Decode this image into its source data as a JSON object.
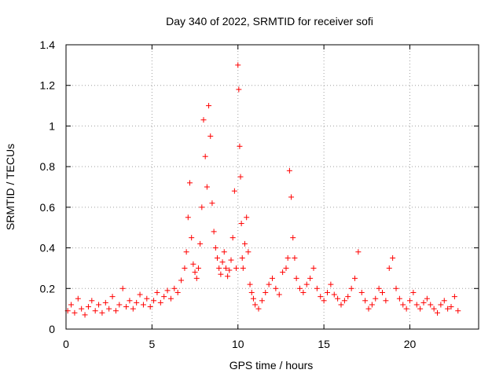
{
  "chart_data": {
    "type": "scatter",
    "title": "Day 340 of 2022, SRMTID for receiver sofi",
    "xlabel": "GPS time / hours",
    "ylabel": "SRMTID / TECUs",
    "xlim": [
      0,
      24
    ],
    "ylim": [
      0,
      1.4
    ],
    "xticks": [
      0,
      5,
      10,
      15,
      20
    ],
    "yticks": [
      0,
      0.2,
      0.4,
      0.6,
      0.8,
      1.0,
      1.2,
      1.4
    ],
    "xtick_labels": [
      "0",
      "5",
      "10",
      "15",
      "20"
    ],
    "ytick_labels": [
      "0",
      "0.2",
      "0.4",
      "0.6",
      "0.8",
      "1",
      "1.2",
      "1.4"
    ],
    "grid": true,
    "legend": "none",
    "marker": "plus",
    "color": "#ff0000",
    "series": [
      {
        "name": "SRMTID",
        "x": [
          0.1,
          0.3,
          0.5,
          0.7,
          0.9,
          1.1,
          1.3,
          1.5,
          1.7,
          1.9,
          2.1,
          2.3,
          2.5,
          2.7,
          2.9,
          3.1,
          3.3,
          3.5,
          3.7,
          3.9,
          4.1,
          4.3,
          4.5,
          4.7,
          4.9,
          5.1,
          5.3,
          5.5,
          5.7,
          5.9,
          6.1,
          6.3,
          6.5,
          6.7,
          6.9,
          7.0,
          7.1,
          7.2,
          7.3,
          7.4,
          7.5,
          7.6,
          7.7,
          7.8,
          7.9,
          8.0,
          8.1,
          8.2,
          8.3,
          8.4,
          8.5,
          8.6,
          8.7,
          8.8,
          8.9,
          9.0,
          9.1,
          9.2,
          9.3,
          9.4,
          9.5,
          9.6,
          9.7,
          9.8,
          9.9,
          10.0,
          10.05,
          10.1,
          10.15,
          10.2,
          10.25,
          10.3,
          10.4,
          10.5,
          10.6,
          10.7,
          10.8,
          10.9,
          11.0,
          11.2,
          11.4,
          11.6,
          11.8,
          12.0,
          12.2,
          12.4,
          12.6,
          12.8,
          12.9,
          13.0,
          13.1,
          13.2,
          13.3,
          13.4,
          13.6,
          13.8,
          14.0,
          14.2,
          14.4,
          14.6,
          14.8,
          15.0,
          15.2,
          15.4,
          15.6,
          15.8,
          16.0,
          16.2,
          16.4,
          16.6,
          16.8,
          17.0,
          17.2,
          17.4,
          17.6,
          17.8,
          18.0,
          18.2,
          18.4,
          18.6,
          18.8,
          19.0,
          19.2,
          19.4,
          19.6,
          19.8,
          20.0,
          20.2,
          20.4,
          20.6,
          20.8,
          21.0,
          21.2,
          21.4,
          21.6,
          21.8,
          22.0,
          22.2,
          22.4,
          22.6,
          22.8
        ],
        "y": [
          0.09,
          0.12,
          0.08,
          0.15,
          0.1,
          0.07,
          0.11,
          0.14,
          0.09,
          0.12,
          0.08,
          0.13,
          0.1,
          0.16,
          0.09,
          0.12,
          0.2,
          0.11,
          0.14,
          0.1,
          0.13,
          0.17,
          0.12,
          0.15,
          0.11,
          0.14,
          0.18,
          0.13,
          0.16,
          0.19,
          0.15,
          0.2,
          0.18,
          0.24,
          0.3,
          0.38,
          0.55,
          0.72,
          0.45,
          0.32,
          0.28,
          0.25,
          0.3,
          0.42,
          0.6,
          1.03,
          0.85,
          0.7,
          1.1,
          0.95,
          0.62,
          0.48,
          0.4,
          0.35,
          0.3,
          0.27,
          0.33,
          0.38,
          0.3,
          0.26,
          0.29,
          0.34,
          0.45,
          0.68,
          0.3,
          1.3,
          1.18,
          0.9,
          0.75,
          0.52,
          0.35,
          0.3,
          0.42,
          0.55,
          0.38,
          0.22,
          0.18,
          0.15,
          0.12,
          0.1,
          0.14,
          0.18,
          0.22,
          0.25,
          0.2,
          0.17,
          0.28,
          0.3,
          0.35,
          0.78,
          0.65,
          0.45,
          0.35,
          0.25,
          0.2,
          0.18,
          0.22,
          0.25,
          0.3,
          0.2,
          0.16,
          0.14,
          0.18,
          0.22,
          0.17,
          0.15,
          0.12,
          0.14,
          0.16,
          0.2,
          0.25,
          0.38,
          0.18,
          0.14,
          0.1,
          0.12,
          0.15,
          0.2,
          0.18,
          0.14,
          0.3,
          0.35,
          0.2,
          0.15,
          0.12,
          0.1,
          0.14,
          0.18,
          0.12,
          0.1,
          0.13,
          0.15,
          0.12,
          0.1,
          0.08,
          0.12,
          0.14,
          0.1,
          0.11,
          0.16,
          0.09
        ]
      }
    ]
  }
}
